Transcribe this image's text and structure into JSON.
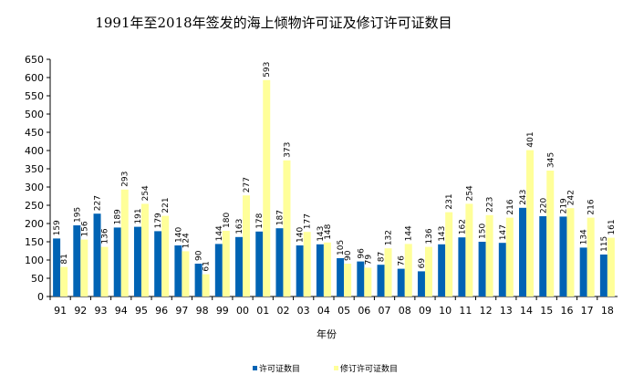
{
  "chart_data": {
    "type": "bar",
    "title": "1991年至2018年签发的海上倾物许可证及修订许可证数目",
    "xlabel": "年份",
    "ylabel": "",
    "ylim": [
      0,
      650
    ],
    "yticks": [
      0,
      50,
      100,
      150,
      200,
      250,
      300,
      350,
      400,
      450,
      500,
      550,
      600,
      650
    ],
    "grid": false,
    "legend_position": "bottom",
    "categories": [
      "91",
      "92",
      "93",
      "94",
      "95",
      "96",
      "97",
      "98",
      "99",
      "00",
      "01",
      "02",
      "03",
      "04",
      "05",
      "06",
      "07",
      "08",
      "09",
      "10",
      "11",
      "12",
      "13",
      "14",
      "15",
      "16",
      "17",
      "18"
    ],
    "series": [
      {
        "name": "许可证数目",
        "color": "#0063B4",
        "values": [
          159,
          195,
          227,
          189,
          191,
          179,
          140,
          90,
          144,
          163,
          178,
          187,
          140,
          143,
          105,
          96,
          87,
          76,
          69,
          143,
          162,
          150,
          147,
          243,
          220,
          219,
          134,
          115
        ]
      },
      {
        "name": "修订许可证数目",
        "color": "#FFFF99",
        "values": [
          81,
          156,
          136,
          293,
          254,
          221,
          124,
          61,
          180,
          277,
          593,
          373,
          177,
          148,
          90,
          79,
          132,
          144,
          136,
          231,
          254,
          223,
          216,
          401,
          345,
          242,
          216,
          161
        ]
      }
    ]
  }
}
